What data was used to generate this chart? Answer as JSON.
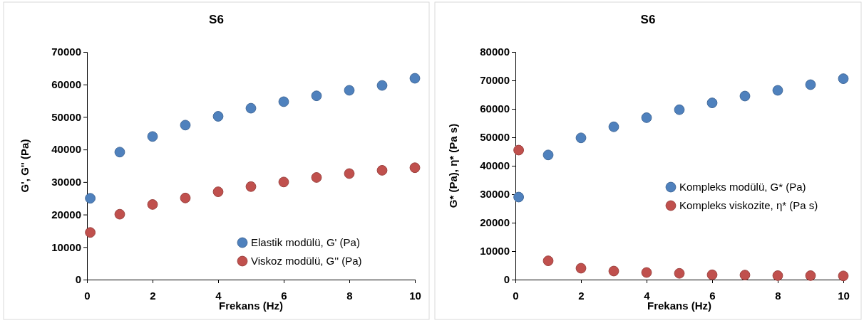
{
  "chart_data": [
    {
      "type": "scatter",
      "title": "S6",
      "xlabel": "Frekans (Hz)",
      "ylabel": "G', G'' (Pa)",
      "xlim": [
        0,
        10
      ],
      "xticks": [
        0,
        2,
        4,
        6,
        8,
        10
      ],
      "ylim": [
        0,
        70000
      ],
      "yticks": [
        0,
        10000,
        20000,
        30000,
        40000,
        50000,
        60000,
        70000
      ],
      "marker": "circle",
      "legend": "bottom right",
      "grid": false,
      "x": [
        0.1,
        1,
        2,
        3,
        4,
        5,
        6,
        7,
        8,
        9,
        10
      ],
      "series": [
        {
          "name": "Elastik modülü, G' (Pa)",
          "color": "#4f81bd",
          "values": [
            25000,
            39200,
            44000,
            47500,
            50200,
            52700,
            54700,
            56500,
            58200,
            59700,
            61900
          ]
        },
        {
          "name": "Viskoz modülü, G'' (Pa)",
          "color": "#c0504d",
          "values": [
            14500,
            20100,
            23100,
            25100,
            27000,
            28600,
            30000,
            31400,
            32600,
            33600,
            34400
          ]
        }
      ]
    },
    {
      "type": "scatter",
      "title": "S6",
      "xlabel": "Frekans (Hz)",
      "ylabel": "G* (Pa), η* (Pa s)",
      "xlim": [
        0,
        10
      ],
      "xticks": [
        0,
        2,
        4,
        6,
        8,
        10
      ],
      "ylim": [
        0,
        80000
      ],
      "yticks": [
        0,
        10000,
        20000,
        30000,
        40000,
        50000,
        60000,
        70000,
        80000
      ],
      "marker": "circle",
      "legend": "right",
      "grid": false,
      "x": [
        0.1,
        1,
        2,
        3,
        4,
        5,
        6,
        7,
        8,
        9,
        10
      ],
      "series": [
        {
          "name": "Kompleks modülü, G* (Pa)",
          "color": "#4f81bd",
          "values": [
            29000,
            43800,
            49800,
            53700,
            56900,
            59700,
            62100,
            64500,
            66500,
            68500,
            70600
          ]
        },
        {
          "name": "Kompleks viskozite, η* (Pa s)",
          "color": "#c0504d",
          "values": [
            45500,
            6600,
            4000,
            3000,
            2500,
            2200,
            1700,
            1600,
            1400,
            1400,
            1300
          ]
        }
      ]
    }
  ]
}
